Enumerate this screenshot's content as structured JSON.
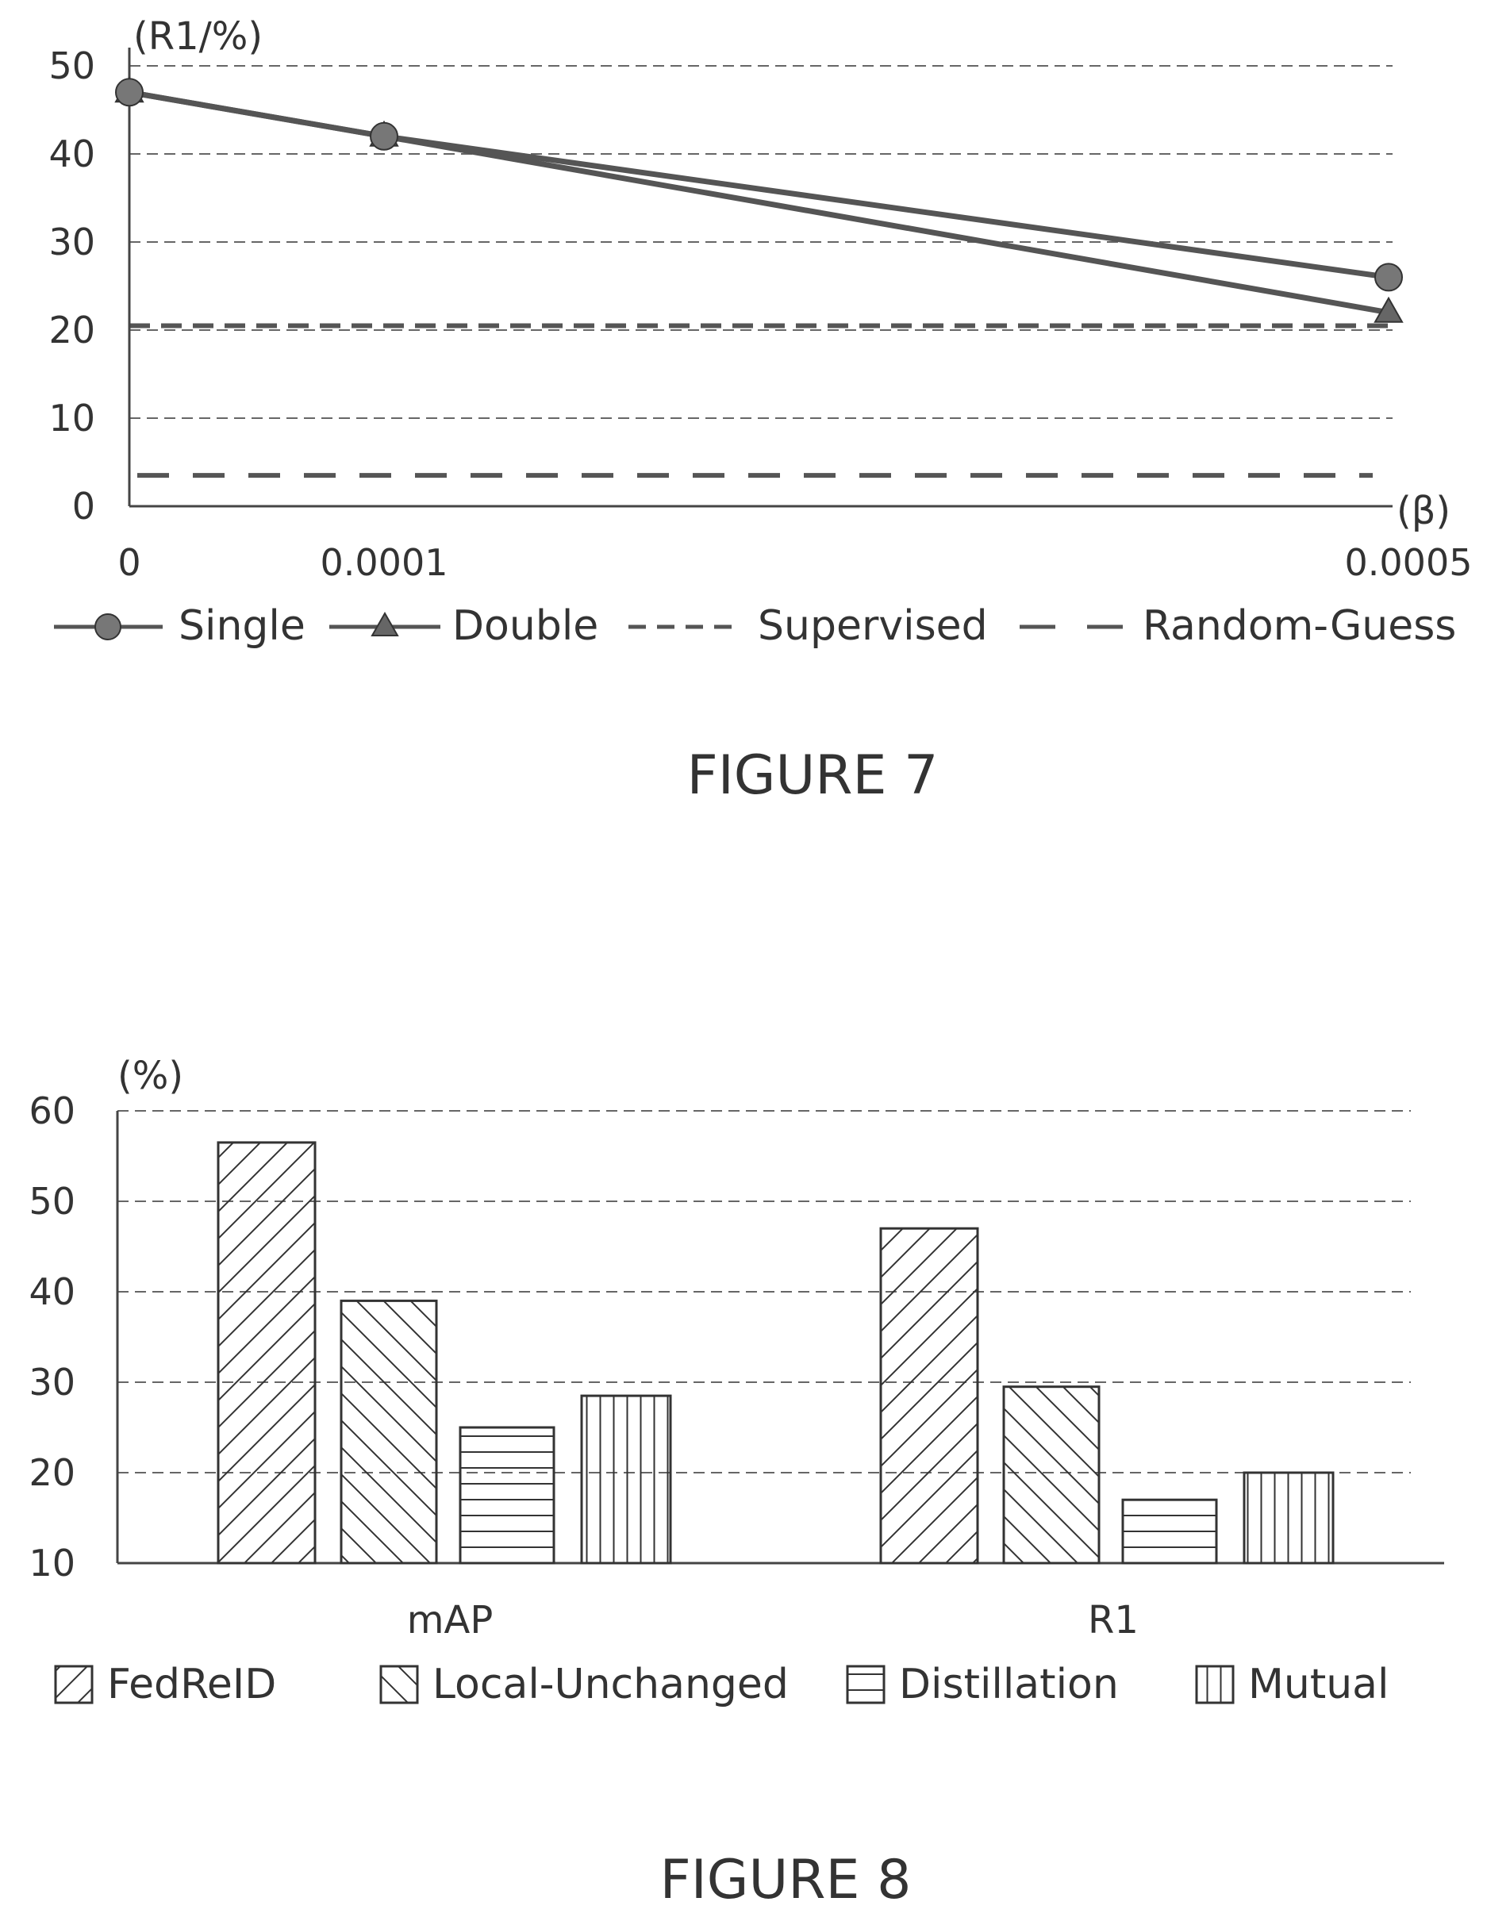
{
  "chart_data": [
    {
      "type": "line",
      "caption": "FIGURE 7",
      "ylabel": "(R1/%)",
      "xlabel": "(β)",
      "x_ticks": [
        "0",
        "0.0001",
        "0.0005"
      ],
      "y_ticks": [
        "0",
        "10",
        "20",
        "30",
        "40",
        "50"
      ],
      "ylim": [
        0,
        50
      ],
      "x_scale": "categorical",
      "grid": "horizontal dashed",
      "legend": "bottom",
      "series": [
        {
          "name": "Single",
          "marker": "circle",
          "x": [
            "0",
            "0.0001",
            "0.0005"
          ],
          "values": [
            47,
            42,
            26
          ]
        },
        {
          "name": "Double",
          "marker": "triangle",
          "x": [
            "0",
            "0.0001",
            "0.0005"
          ],
          "values": [
            47,
            42,
            22
          ]
        },
        {
          "name": "Supervised",
          "style": "dashed",
          "values": [
            20.5
          ]
        },
        {
          "name": "Random-Guess",
          "style": "long-dashed",
          "values": [
            3.5
          ]
        }
      ],
      "legend_labels": [
        "Single",
        "Double",
        "Supervised",
        "Random-Guess"
      ]
    },
    {
      "type": "bar",
      "caption": "FIGURE 8",
      "ylabel": "(%)",
      "categories": [
        "mAP",
        "R1"
      ],
      "y_ticks": [
        "10",
        "20",
        "30",
        "40",
        "50",
        "60"
      ],
      "ylim": [
        10,
        60
      ],
      "grid": "horizontal dashed",
      "legend": "bottom",
      "series": [
        {
          "name": "FedReID",
          "pattern": "diag-up",
          "values": [
            56.5,
            47
          ]
        },
        {
          "name": "Local-Unchanged",
          "pattern": "diag-down",
          "values": [
            39,
            29.5
          ]
        },
        {
          "name": "Distillation",
          "pattern": "horizontal",
          "values": [
            25,
            17
          ]
        },
        {
          "name": "Mutual",
          "pattern": "vertical",
          "values": [
            28.5,
            20
          ]
        }
      ]
    }
  ]
}
